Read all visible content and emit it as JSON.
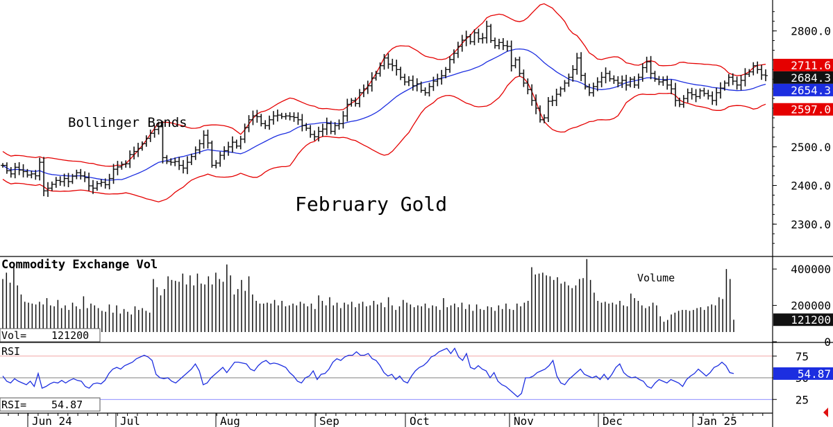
{
  "chart_data": [
    {
      "type": "ohlc",
      "title": "February Gold",
      "annotation": "Bollinger Bands",
      "months": [
        "Jun 24",
        "Jul",
        "Aug",
        "Sep",
        "Oct",
        "Nov",
        "Dec",
        "Jan 25"
      ],
      "yticks": [
        2300,
        2400,
        2500,
        2600,
        2700,
        2800
      ],
      "ytick_labels": [
        "2300.0",
        "2400.0",
        "2500.0",
        "2600.0",
        "2700.0",
        "2800.0"
      ],
      "ylim": [
        2218,
        2880
      ],
      "close": [
        2452,
        2438,
        2430,
        2447,
        2440,
        2436,
        2427,
        2430,
        2425,
        2460,
        2386,
        2393,
        2403,
        2413,
        2410,
        2418,
        2410,
        2424,
        2433,
        2425,
        2420,
        2399,
        2393,
        2405,
        2408,
        2402,
        2418,
        2442,
        2448,
        2455,
        2456,
        2480,
        2488,
        2496,
        2508,
        2522,
        2535,
        2545,
        2552,
        2472,
        2462,
        2460,
        2462,
        2452,
        2445,
        2460,
        2475,
        2492,
        2508,
        2530,
        2510,
        2452,
        2458,
        2478,
        2490,
        2500,
        2512,
        2502,
        2520,
        2550,
        2570,
        2580,
        2578,
        2560,
        2555,
        2570,
        2580,
        2582,
        2578,
        2580,
        2578,
        2576,
        2570,
        2555,
        2548,
        2532,
        2526,
        2540,
        2546,
        2560,
        2540,
        2555,
        2560,
        2580,
        2610,
        2620,
        2612,
        2640,
        2650,
        2658,
        2678,
        2690,
        2710,
        2730,
        2714,
        2710,
        2700,
        2680,
        2668,
        2672,
        2658,
        2663,
        2646,
        2640,
        2656,
        2670,
        2676,
        2684,
        2700,
        2726,
        2742,
        2760,
        2776,
        2785,
        2772,
        2795,
        2780,
        2782,
        2812,
        2775,
        2762,
        2770,
        2762,
        2760,
        2710,
        2725,
        2690,
        2665,
        2648,
        2620,
        2600,
        2570,
        2575,
        2618,
        2620,
        2636,
        2650,
        2665,
        2680,
        2700,
        2730,
        2685,
        2655,
        2640,
        2656,
        2668,
        2680,
        2690,
        2676,
        2672,
        2665,
        2672,
        2660,
        2675,
        2660,
        2680,
        2705,
        2720,
        2690,
        2675,
        2668,
        2672,
        2660,
        2650,
        2620,
        2610,
        2625,
        2640,
        2635,
        2630,
        2645,
        2638,
        2632,
        2620,
        2640,
        2652,
        2665,
        2680,
        2670,
        2660,
        2672,
        2688,
        2694,
        2710,
        2700,
        2686,
        2684.3
      ],
      "indicators": [
        {
          "label": "2711.6",
          "value": 2711.6,
          "color": "#e50000"
        },
        {
          "label": "2684.3",
          "value": 2684.3,
          "color": "#111111"
        },
        {
          "label": "2654.3",
          "value": 2654.3,
          "color": "#1c2ee0"
        },
        {
          "label": "2597.0",
          "value": 2597.0,
          "color": "#e50000"
        }
      ],
      "colors": {
        "price": "#111111",
        "ma": "#1c2ee0",
        "bands": "#e50000"
      }
    },
    {
      "type": "bar",
      "title": "Commodity Exchange Vol",
      "legend": "Volume",
      "readout_label": "Vol=",
      "readout_value": "121200",
      "yticks": [
        0,
        200000,
        400000
      ],
      "ytick_labels": [
        "0",
        "200000",
        "400000"
      ],
      "ylim": [
        0,
        450000
      ],
      "current": {
        "label": "121200",
        "value": 121200
      },
      "values": [
        345000,
        380000,
        325000,
        420000,
        310000,
        260000,
        220000,
        215000,
        210000,
        205000,
        220000,
        205000,
        240000,
        200000,
        195000,
        230000,
        185000,
        200000,
        175000,
        215000,
        195000,
        180000,
        250000,
        185000,
        210000,
        200000,
        185000,
        170000,
        165000,
        205000,
        160000,
        200000,
        155000,
        180000,
        165000,
        150000,
        195000,
        175000,
        185000,
        170000,
        160000,
        345000,
        300000,
        255000,
        290000,
        360000,
        340000,
        335000,
        330000,
        375000,
        315000,
        365000,
        310000,
        375000,
        320000,
        315000,
        360000,
        315000,
        380000,
        345000,
        330000,
        425000,
        365000,
        260000,
        290000,
        340000,
        280000,
        360000,
        260000,
        225000,
        210000,
        210000,
        215000,
        210000,
        230000,
        200000,
        225000,
        195000,
        200000,
        210000,
        200000,
        220000,
        210000,
        195000,
        210000,
        180000,
        255000,
        225000,
        200000,
        245000,
        200000,
        215000,
        185000,
        215000,
        205000,
        220000,
        190000,
        210000,
        220000,
        195000,
        200000,
        225000,
        205000,
        215000,
        190000,
        245000,
        200000,
        175000,
        195000,
        230000,
        215000,
        205000,
        190000,
        200000,
        195000,
        210000,
        185000,
        200000,
        195000,
        175000,
        240000,
        190000,
        200000,
        210000,
        190000,
        215000,
        180000,
        205000,
        170000,
        205000,
        180000,
        175000,
        195000,
        190000,
        170000,
        200000,
        180000,
        210000,
        180000,
        175000,
        210000,
        195000,
        215000,
        225000,
        410000,
        370000,
        375000,
        380000,
        365000,
        360000,
        340000,
        355000,
        320000,
        330000,
        310000,
        295000,
        310000,
        345000,
        350000,
        455000,
        340000,
        270000,
        225000,
        215000,
        220000,
        210000,
        215000,
        205000,
        225000,
        200000,
        195000,
        265000,
        240000,
        225000,
        200000,
        185000,
        195000,
        215000,
        200000,
        140000,
        110000,
        120000,
        150000,
        160000,
        170000,
        175000,
        175000,
        170000,
        175000,
        185000,
        190000,
        175000,
        195000,
        205000,
        200000,
        245000,
        235000,
        400000,
        345000,
        121200
      ]
    },
    {
      "type": "line",
      "title": "RSI",
      "readout_label": "RSI=",
      "readout_value": "54.87",
      "yticks": [
        25,
        50,
        75
      ],
      "ytick_labels": [
        "25",
        "50",
        "75"
      ],
      "ylim": [
        10,
        90
      ],
      "reference_lines": [
        75,
        50,
        25
      ],
      "current": {
        "label": "54.87",
        "value": 54.87
      },
      "color": "#1c2ee0",
      "values": [
        52,
        46,
        44,
        49,
        46,
        44,
        42,
        46,
        40,
        55,
        38,
        40,
        43,
        45,
        44,
        47,
        44,
        47,
        49,
        47,
        46,
        40,
        38,
        43,
        44,
        43,
        47,
        55,
        60,
        62,
        60,
        64,
        66,
        68,
        72,
        74,
        76,
        74,
        70,
        54,
        50,
        49,
        50,
        46,
        44,
        48,
        52,
        56,
        60,
        66,
        58,
        42,
        44,
        50,
        54,
        58,
        62,
        56,
        62,
        68,
        68,
        67,
        66,
        60,
        58,
        64,
        68,
        70,
        66,
        67,
        66,
        64,
        62,
        56,
        52,
        46,
        44,
        50,
        52,
        58,
        48,
        54,
        55,
        60,
        68,
        72,
        70,
        74,
        76,
        76,
        80,
        76,
        76,
        78,
        72,
        70,
        64,
        56,
        52,
        54,
        48,
        52,
        46,
        44,
        52,
        58,
        62,
        64,
        68,
        74,
        76,
        80,
        82,
        84,
        78,
        84,
        74,
        70,
        78,
        62,
        60,
        64,
        60,
        58,
        50,
        56,
        46,
        42,
        40,
        36,
        32,
        28,
        32,
        50,
        50,
        52,
        56,
        58,
        60,
        64,
        70,
        52,
        44,
        42,
        48,
        52,
        56,
        60,
        54,
        52,
        50,
        52,
        48,
        54,
        48,
        54,
        62,
        66,
        56,
        52,
        50,
        51,
        48,
        46,
        40,
        38,
        44,
        48,
        46,
        44,
        48,
        46,
        44,
        40,
        48,
        52,
        55,
        60,
        56,
        52,
        56,
        62,
        64,
        68,
        64,
        56,
        54.87
      ]
    }
  ]
}
